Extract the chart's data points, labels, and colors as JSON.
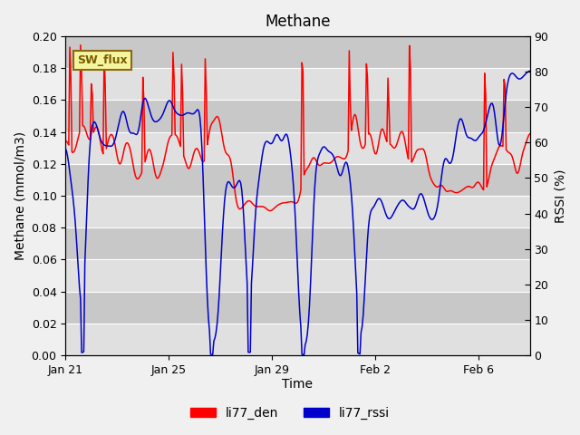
{
  "title": "Methane",
  "xlabel": "Time",
  "ylabel_left": "Methane (mmol/m3)",
  "ylabel_right": "RSSI (%)",
  "ylim_left": [
    0.0,
    0.2
  ],
  "ylim_right": [
    0,
    90
  ],
  "yticks_left": [
    0.0,
    0.02,
    0.04,
    0.06,
    0.08,
    0.1,
    0.12,
    0.14,
    0.16,
    0.18,
    0.2
  ],
  "yticks_right": [
    0,
    10,
    20,
    30,
    40,
    50,
    60,
    70,
    80,
    90
  ],
  "xtick_labels": [
    "Jan 21",
    "Jan 25",
    "Jan 29",
    "Feb 2",
    "Feb 6"
  ],
  "label_box": "SW_flux",
  "legend_labels": [
    "li77_den",
    "li77_rssi"
  ],
  "line_colors": [
    "#ff0000",
    "#0000cc"
  ],
  "fig_facecolor": "#f0f0f0",
  "plot_bg_color": "#d8d8d8",
  "band_color_light": "#e0e0e0",
  "band_color_dark": "#c8c8c8",
  "figsize": [
    6.4,
    4.8
  ],
  "dpi": 100
}
